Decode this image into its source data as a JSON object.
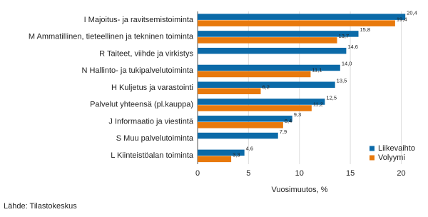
{
  "chart_data": {
    "type": "hbar",
    "categories": [
      "I Majoitus- ja ravitsemistoiminta",
      "M Ammatillinen, tieteellinen ja tekninen toiminta",
      "R Taiteet, viihde ja virkistys",
      "N Hallinto- ja tukipalvelutoiminta",
      "H Kuljetus ja varastointi",
      "Palvelut yhteensä (pl.kauppa)",
      "J Informaatio ja viestintä",
      "S Muu palvelutoiminta",
      "L Kiinteistöalan toiminta"
    ],
    "series": [
      {
        "name": "Liikevaihto",
        "color": "#0b6aa8",
        "values": [
          20.4,
          15.8,
          14.6,
          14.0,
          13.5,
          12.5,
          9.3,
          7.9,
          4.6
        ],
        "value_labels": [
          "20,4",
          "15,8",
          "14,6",
          "14,0",
          "13,5",
          "12,5",
          "9,3",
          "7,9",
          "4,6"
        ]
      },
      {
        "name": "Volyymi",
        "color": "#e8790c",
        "values": [
          19.4,
          13.7,
          null,
          11.1,
          6.2,
          11.2,
          8.4,
          null,
          3.3
        ],
        "value_labels": [
          "19,4",
          "13,7",
          null,
          "11,1",
          "6,2",
          "11,2",
          "8,4",
          null,
          "3,3"
        ]
      }
    ],
    "xlim": [
      0,
      22
    ],
    "xticks": [
      0,
      5,
      10,
      15,
      20
    ],
    "grid": true,
    "x_label": "Vuosimuutos, %",
    "legend": "bottom-right",
    "source": "Lähde: Tilastokeskus"
  }
}
